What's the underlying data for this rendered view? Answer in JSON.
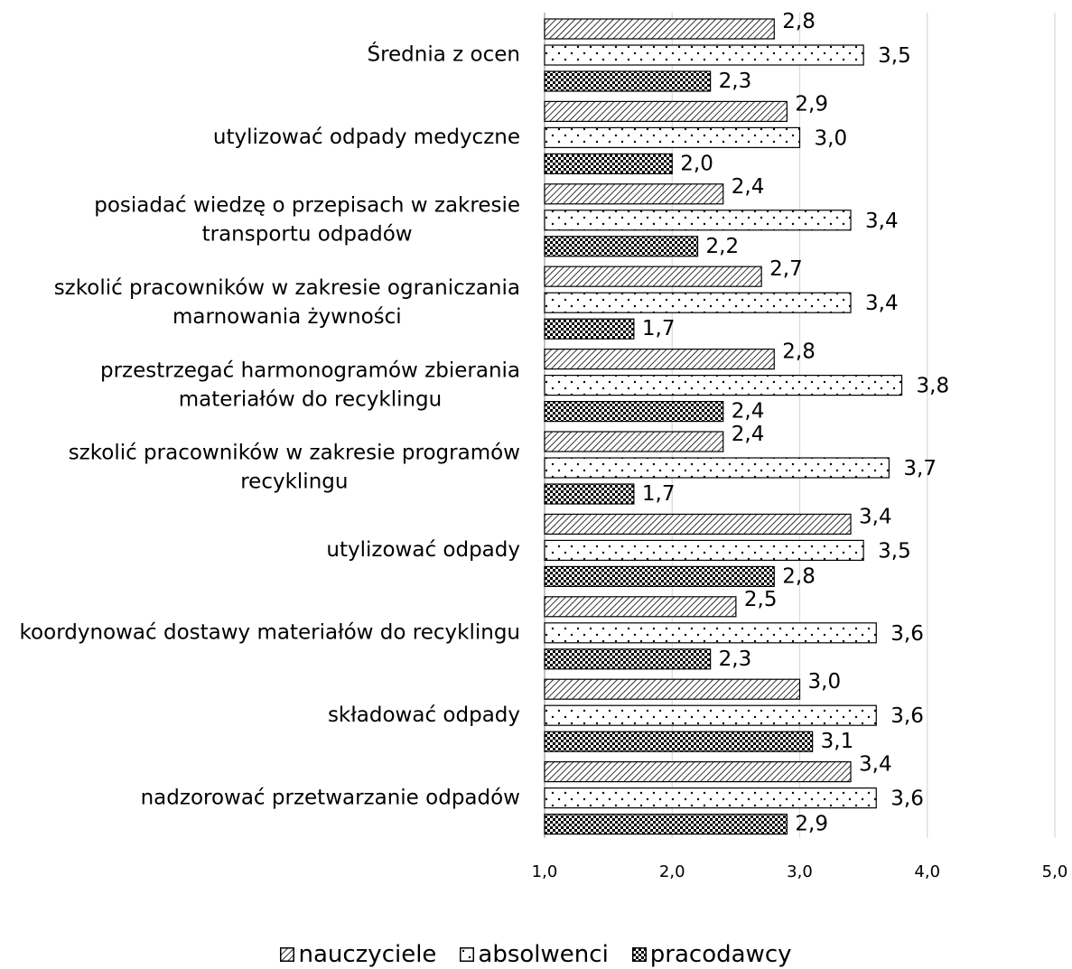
{
  "chart_data": {
    "type": "bar",
    "orientation": "horizontal",
    "categories": [
      "Średnia z ocen",
      "utylizować odpady medyczne",
      "posiadać wiedzę o przepisach w zakresie transportu odpadów",
      "szkolić pracowników w zakresie ograniczania marnowania żywności",
      "przestrzegać harmonogramów zbierania materiałów do recyklingu",
      "szkolić pracowników w zakresie programów recyklingu",
      "utylizować odpady",
      "koordynować dostawy materiałów do recyklingu",
      "składować odpady",
      "nadzorować przetwarzanie odpadów"
    ],
    "category_lines": [
      [
        "Średnia z ocen"
      ],
      [
        "utylizować odpady medyczne"
      ],
      [
        "posiadać wiedzę o przepisach w zakresie",
        "transportu odpadów"
      ],
      [
        "szkolić pracowników w zakresie ograniczania",
        "marnowania żywności"
      ],
      [
        "przestrzegać harmonogramów zbierania",
        "materiałów do recyklingu"
      ],
      [
        "szkolić pracowników w zakresie programów",
        "recyklingu"
      ],
      [
        "utylizować odpady"
      ],
      [
        "koordynować dostawy materiałów do recyklingu"
      ],
      [
        "składować odpady"
      ],
      [
        "nadzorować przetwarzanie odpadów"
      ]
    ],
    "series": [
      {
        "name": "nauczyciele",
        "pattern": "diagonal-hatch",
        "values": [
          2.8,
          2.9,
          2.4,
          2.7,
          2.8,
          2.4,
          3.4,
          2.5,
          3.0,
          3.4
        ]
      },
      {
        "name": "absolwenci",
        "pattern": "sparse-dots",
        "values": [
          3.5,
          3.0,
          3.4,
          3.4,
          3.8,
          3.7,
          3.5,
          3.6,
          3.6,
          3.6
        ]
      },
      {
        "name": "pracodawcy",
        "pattern": "checker",
        "values": [
          2.3,
          2.0,
          2.2,
          1.7,
          2.4,
          1.7,
          2.8,
          2.3,
          3.1,
          2.9
        ]
      }
    ],
    "value_labels": [
      [
        "2,8",
        "3,5",
        "2,3"
      ],
      [
        "2,9",
        "3,0",
        "2,0"
      ],
      [
        "2,4",
        "3,4",
        "2,2"
      ],
      [
        "2,7",
        "3,4",
        "1,7"
      ],
      [
        "2,8",
        "3,8",
        "2,4"
      ],
      [
        "2,4",
        "3,7",
        "1,7"
      ],
      [
        "3,4",
        "3,5",
        "2,8"
      ],
      [
        "2,5",
        "3,6",
        "2,3"
      ],
      [
        "3,0",
        "3,6",
        "3,1"
      ],
      [
        "3,4",
        "3,6",
        "2,9"
      ]
    ],
    "xlim": [
      1.0,
      5.0
    ],
    "xticks": [
      1.0,
      2.0,
      3.0,
      4.0,
      5.0
    ],
    "xtick_labels": [
      "1,0",
      "2,0",
      "3,0",
      "4,0",
      "5,0"
    ],
    "title": "",
    "xlabel": "",
    "ylabel": "",
    "grid": "vertical",
    "legend_position": "bottom"
  },
  "legend": {
    "items": [
      {
        "label": "nauczyciele"
      },
      {
        "label": "absolwenci"
      },
      {
        "label": "pracodawcy"
      }
    ]
  }
}
